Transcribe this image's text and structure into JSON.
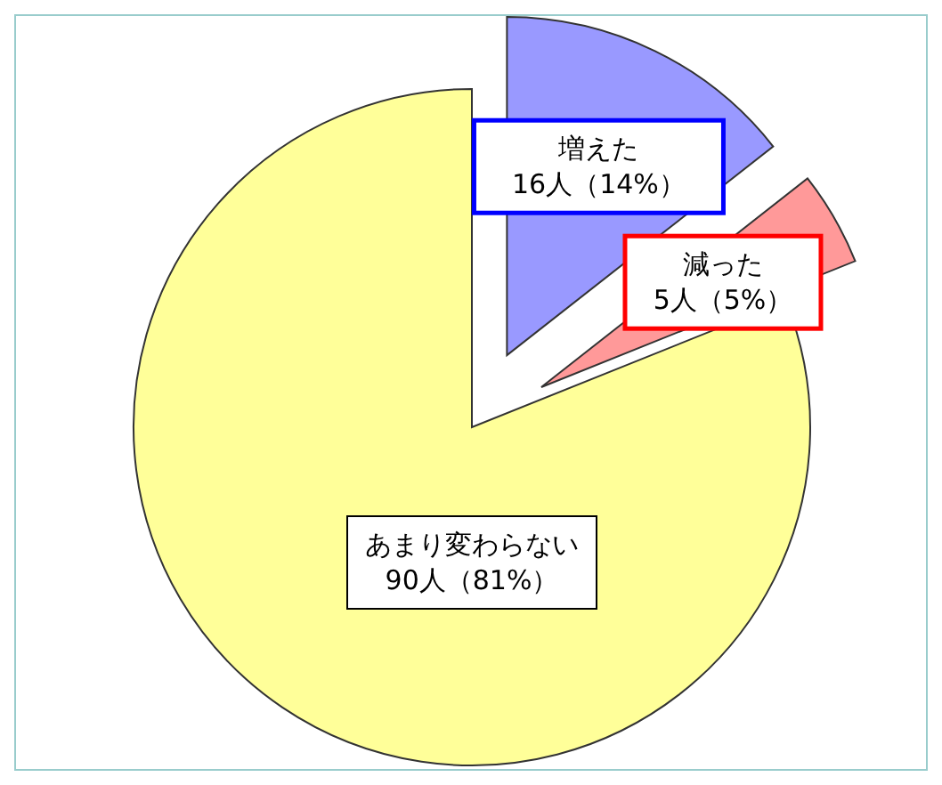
{
  "chart_data": {
    "type": "pie",
    "categories": [
      "増えた",
      "減った",
      "あまり変わらない"
    ],
    "values": [
      16,
      5,
      90
    ],
    "colors": [
      "#9999ff",
      "#ff9999",
      "#ffff99"
    ],
    "value_labels": [
      "16人（14%）",
      "5人（5%）",
      "90人（81%）"
    ]
  }
}
